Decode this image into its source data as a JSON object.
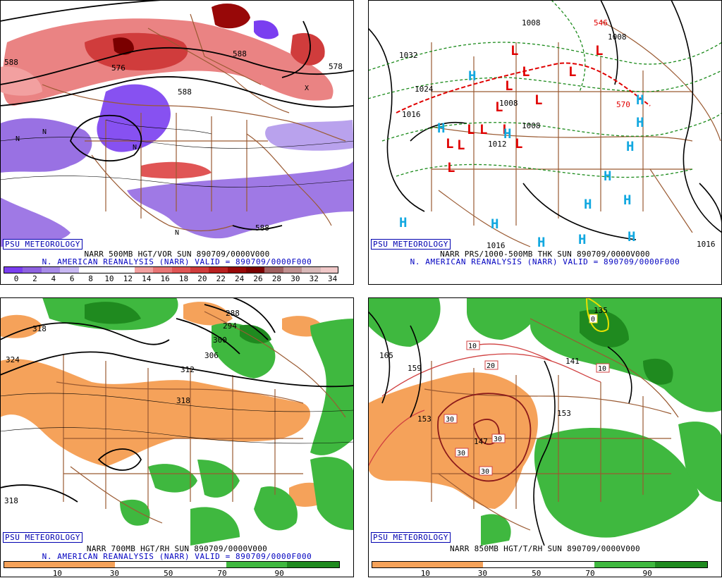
{
  "panels": [
    {
      "name": "vorticity",
      "psu_label": "PSU METEOROLOGY",
      "caption1": "NARR 500MB HGT/VOR SUN 890709/0000V000",
      "caption2": "N. AMERICAN REANALYSIS (NARR) VALID = 890709/0000F000",
      "colorbar_ticks": [
        "0",
        "2",
        "4",
        "6",
        "8",
        "10",
        "12",
        "14",
        "16",
        "18",
        "20",
        "22",
        "24",
        "26",
        "28",
        "30",
        "32",
        "34"
      ],
      "colorbar_colors": [
        "#7a3ef0",
        "#8e62e0",
        "#a78be8",
        "#c8b8f2",
        "#ffffff",
        "#ffffff",
        "#ffffff",
        "#f2a0a0",
        "#e87575",
        "#e05555",
        "#d03c3c",
        "#b82020",
        "#980808",
        "#7a0000",
        "#a06060",
        "#c09090",
        "#d8b8b8",
        "#f0c8c8"
      ],
      "contour_labels": [
        "588",
        "588",
        "576",
        "588",
        "578",
        "588",
        "N",
        "N",
        "N",
        "N",
        "N",
        "X"
      ]
    },
    {
      "name": "pressure",
      "psu_label": "PSU METEOROLOGY",
      "caption1": "NARR PRS/1000-500MB THK SUN 890709/0000V000",
      "caption2": "N. AMERICAN REANALYSIS (NARR) VALID = 890709/0000F000",
      "contour_labels": [
        "1032",
        "1008",
        "1008",
        "1008",
        "1008",
        "1012",
        "1016",
        "1016",
        "1016",
        "1024",
        "570",
        "546"
      ],
      "lows": [
        "L",
        "L",
        "L",
        "L",
        "L",
        "L",
        "L",
        "L",
        "L",
        "L",
        "L",
        "L",
        "L",
        "L"
      ],
      "highs": [
        "H",
        "H",
        "H",
        "H",
        "H",
        "H",
        "H",
        "H",
        "H",
        "H",
        "H",
        "H",
        "H",
        "H"
      ]
    },
    {
      "name": "rh700",
      "psu_label": "PSU METEOROLOGY",
      "caption1": "NARR 700MB HGT/RH SUN 890709/0000V000",
      "caption2": "N. AMERICAN REANALYSIS (NARR) VALID = 890709/0000F000",
      "colorbar_ticks": [
        "10",
        "30",
        "50",
        "70",
        "90"
      ],
      "contour_labels": [
        "318",
        "324",
        "288",
        "294",
        "300",
        "306",
        "312",
        "318",
        "318"
      ]
    },
    {
      "name": "temp850",
      "psu_label": "PSU METEOROLOGY",
      "caption1": "NARR 850MB HGT/T/RH SUN 890709/0000V000",
      "colorbar_ticks": [
        "10",
        "30",
        "50",
        "70",
        "90"
      ],
      "contour_labels": [
        "165",
        "159",
        "153",
        "153",
        "147",
        "141",
        "135",
        "10",
        "10",
        "20",
        "30",
        "30",
        "30",
        "30",
        "0"
      ]
    }
  ],
  "colors": {
    "border": "#9a5a32",
    "dry_rh": "#f5a25a",
    "moist_rh": "#3fb83f",
    "moist_rh_dark": "#1f8a1f",
    "low_red": "#e00000",
    "high_cyan": "#12a8e0",
    "label_blue": "#0000b0"
  }
}
